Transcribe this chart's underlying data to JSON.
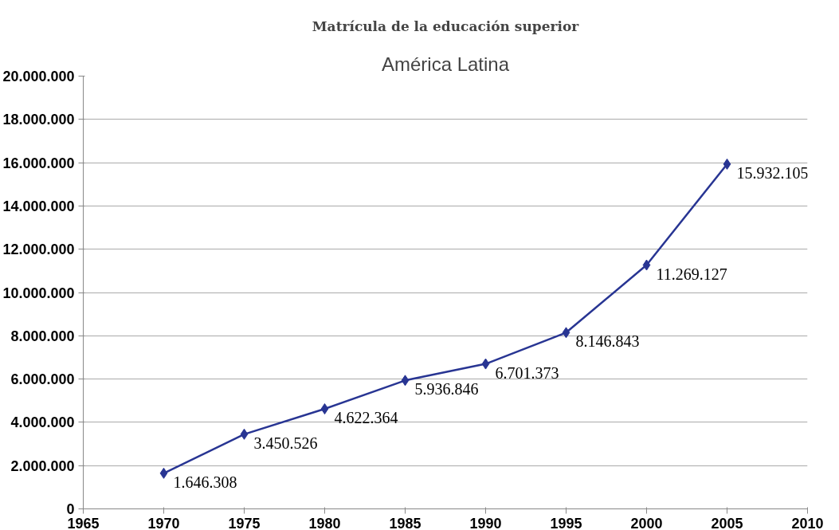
{
  "chart_data": {
    "type": "line",
    "title": "Matrícula de la educación superior",
    "subtitle": "América Latina",
    "x": [
      1970,
      1975,
      1980,
      1985,
      1990,
      1995,
      2000,
      2005
    ],
    "series": [
      {
        "color": "#283593",
        "values": [
          1646308,
          3450526,
          4622364,
          5936846,
          6701373,
          8146843,
          11269127,
          15932105
        ],
        "value_labels": [
          "1.646.308",
          "3.450.526",
          "4.622.364",
          "5.936.846",
          "6.701.373",
          "8.146.843",
          "11.269.127",
          "15.932.105"
        ]
      }
    ],
    "xlim": [
      1965,
      2010
    ],
    "xticks": [
      1965,
      1970,
      1975,
      1980,
      1985,
      1990,
      1995,
      2000,
      2005,
      2010
    ],
    "ylim": [
      0,
      20000000
    ],
    "yticks": [
      0,
      {
        "value": 2000000,
        "label": "2.000.000"
      },
      {
        "value": 4000000,
        "label": "4.000.000"
      },
      {
        "value": 6000000,
        "label": "6.000.000"
      },
      {
        "value": 8000000,
        "label": "8.000.000"
      },
      {
        "value": 10000000,
        "label": "10.000.000"
      },
      {
        "value": 12000000,
        "label": "12.000.000"
      },
      {
        "value": 14000000,
        "label": "14.000.000"
      },
      {
        "value": 16000000,
        "label": "16.000.000"
      },
      {
        "value": 18000000,
        "label": "18.000.000"
      },
      {
        "value": 20000000,
        "label": "20.000.000"
      }
    ],
    "grid": "y",
    "marker": "diamond",
    "line_style": "solid"
  }
}
